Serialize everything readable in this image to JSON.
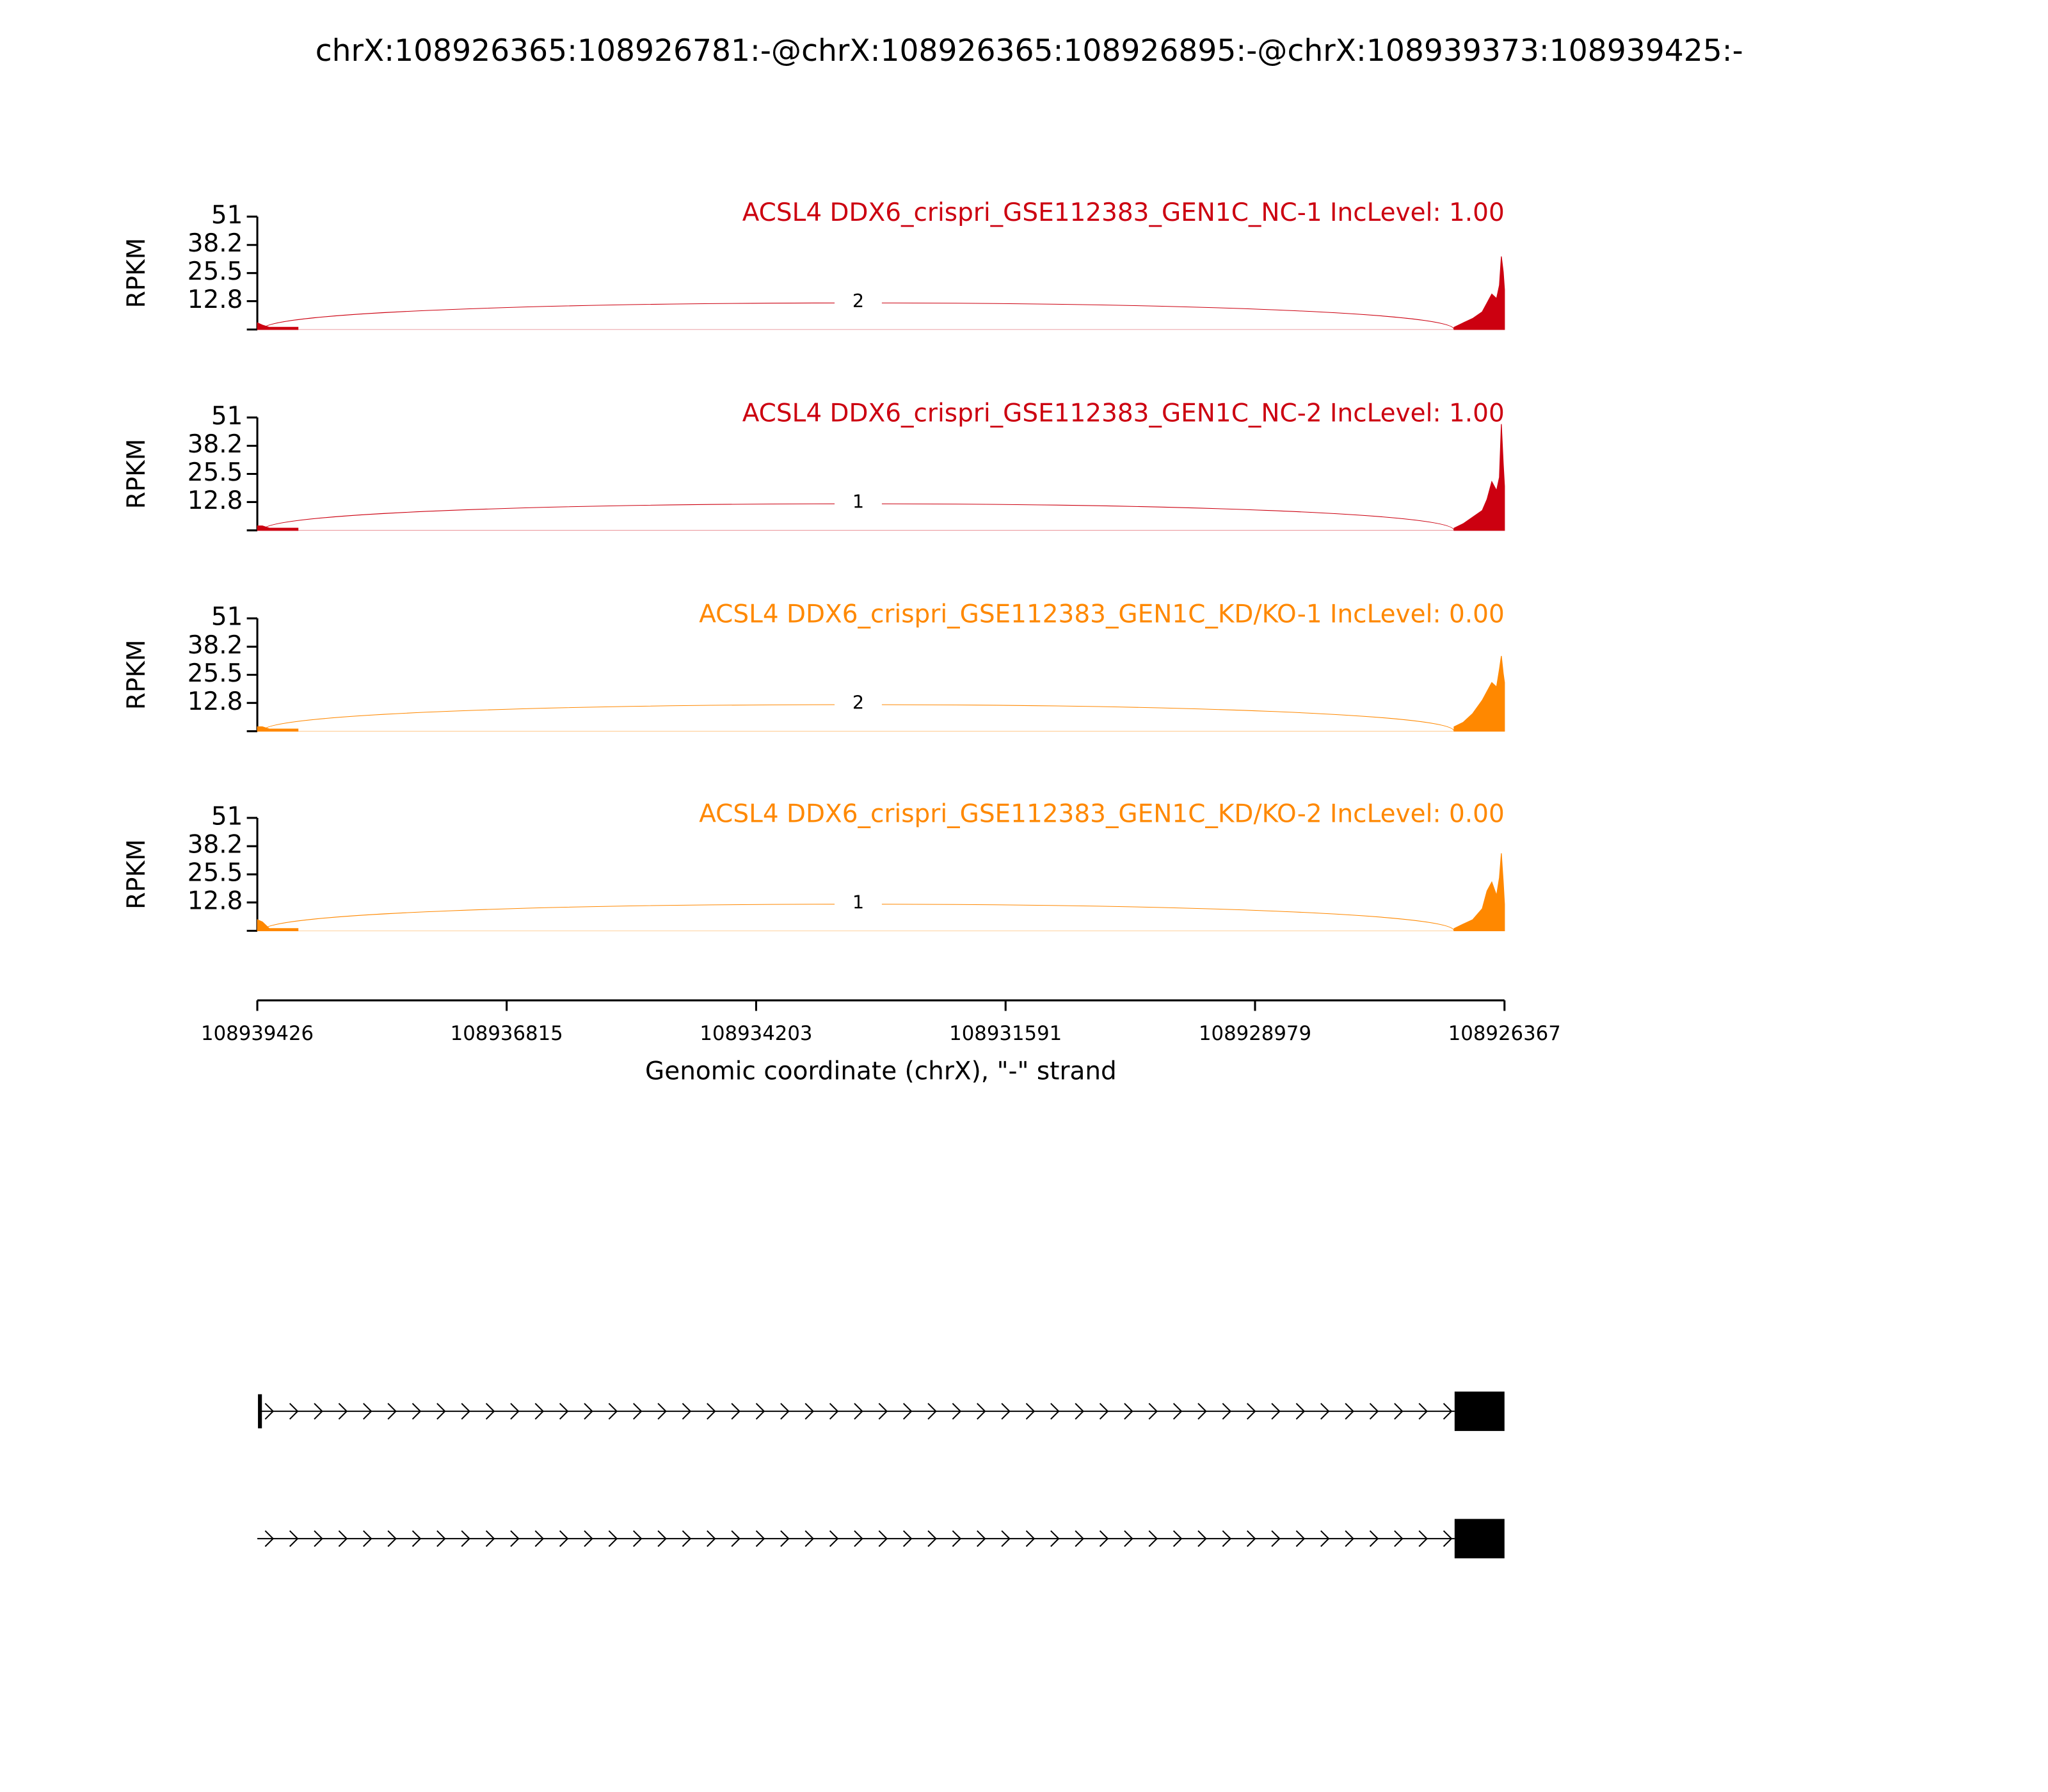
{
  "title": "chrX:108926365:108926781:-@chrX:108926365:108926895:-@chrX:108939373:108939425:-",
  "chart_data": [
    {
      "type": "area",
      "title": "ACSL4 DDX6_crispri_GSE112383_GEN1C_NC-1 IncLevel: 1.00",
      "ylabel": "RPKM",
      "color": "#cc0010",
      "xlim": [
        108939426,
        108926367
      ],
      "ylim": [
        0,
        51
      ],
      "yticks": [
        12.8,
        25.5,
        38.2,
        51
      ],
      "x": [
        108939425,
        108939373,
        108939300,
        108939000,
        108938700,
        108926895,
        108926800,
        108926700,
        108926600,
        108926550,
        108926500,
        108926450,
        108926420,
        108926400,
        108926380,
        108926367
      ],
      "values": [
        3,
        2,
        1,
        1,
        null,
        1,
        3,
        5,
        8,
        12,
        16,
        14,
        20,
        33,
        26,
        18
      ],
      "junctions": [
        {
          "start": 108939373,
          "end": 108926895,
          "count": 2
        }
      ]
    },
    {
      "type": "area",
      "title": "ACSL4 DDX6_crispri_GSE112383_GEN1C_NC-2 IncLevel: 1.00",
      "ylabel": "RPKM",
      "color": "#cc0010",
      "xlim": [
        108939426,
        108926367
      ],
      "ylim": [
        0,
        51
      ],
      "yticks": [
        12.8,
        25.5,
        38.2,
        51
      ],
      "x": [
        108939425,
        108939373,
        108939300,
        108939000,
        108938700,
        108926895,
        108926800,
        108926700,
        108926600,
        108926550,
        108926500,
        108926450,
        108926420,
        108926400,
        108926380,
        108926367
      ],
      "values": [
        2,
        2,
        1,
        1,
        null,
        1,
        3,
        6,
        9,
        14,
        22,
        18,
        24,
        48,
        30,
        20
      ],
      "junctions": [
        {
          "start": 108939373,
          "end": 108926895,
          "count": 1
        }
      ]
    },
    {
      "type": "area",
      "title": "ACSL4 DDX6_crispri_GSE112383_GEN1C_KD/KO-1 IncLevel: 0.00",
      "ylabel": "RPKM",
      "color": "#ff8800",
      "xlim": [
        108939426,
        108926367
      ],
      "ylim": [
        0,
        51
      ],
      "yticks": [
        12.8,
        25.5,
        38.2,
        51
      ],
      "x": [
        108939425,
        108939373,
        108939300,
        108939000,
        108938700,
        108926895,
        108926800,
        108926700,
        108926600,
        108926550,
        108926500,
        108926450,
        108926420,
        108926400,
        108926380,
        108926367
      ],
      "values": [
        2,
        2,
        1,
        1,
        null,
        2,
        4,
        8,
        14,
        18,
        22,
        20,
        28,
        34,
        26,
        22
      ],
      "junctions": [
        {
          "start": 108939373,
          "end": 108926895,
          "count": 2
        }
      ]
    },
    {
      "type": "area",
      "title": "ACSL4 DDX6_crispri_GSE112383_GEN1C_KD/KO-2 IncLevel: 0.00",
      "ylabel": "RPKM",
      "color": "#ff8800",
      "xlim": [
        108939426,
        108926367
      ],
      "ylim": [
        0,
        51
      ],
      "yticks": [
        12.8,
        25.5,
        38.2,
        51
      ],
      "x": [
        108939425,
        108939373,
        108939300,
        108939000,
        108938700,
        108926895,
        108926800,
        108926700,
        108926600,
        108926550,
        108926500,
        108926450,
        108926420,
        108926400,
        108926380,
        108926367
      ],
      "values": [
        5,
        4,
        1,
        1,
        null,
        1,
        3,
        5,
        10,
        18,
        22,
        16,
        24,
        35,
        22,
        12
      ],
      "junctions": [
        {
          "start": 108939373,
          "end": 108926895,
          "count": 1
        }
      ]
    }
  ],
  "xaxis": {
    "label": "Genomic coordinate (chrX), \"-\" strand",
    "xlim": [
      108939426,
      108926367
    ],
    "xticks": [
      108939426,
      108936815,
      108934203,
      108931591,
      108928979,
      108926367
    ]
  }
}
